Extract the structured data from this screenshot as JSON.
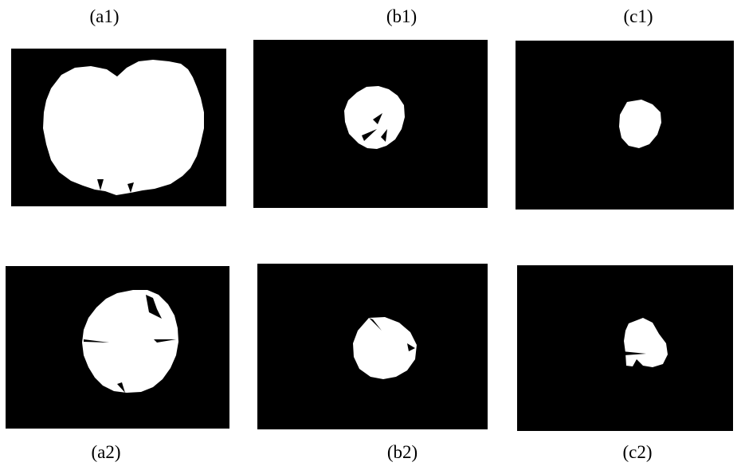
{
  "figure": {
    "colors": {
      "background": "#000000",
      "foreground": "#ffffff"
    },
    "panels": [
      {
        "id": "a1",
        "label": "(a1)"
      },
      {
        "id": "b1",
        "label": "(b1)"
      },
      {
        "id": "c1",
        "label": "(c1)"
      },
      {
        "id": "a2",
        "label": "(a2)"
      },
      {
        "id": "b2",
        "label": "(b2)"
      },
      {
        "id": "c2",
        "label": "(c2)"
      }
    ]
  }
}
